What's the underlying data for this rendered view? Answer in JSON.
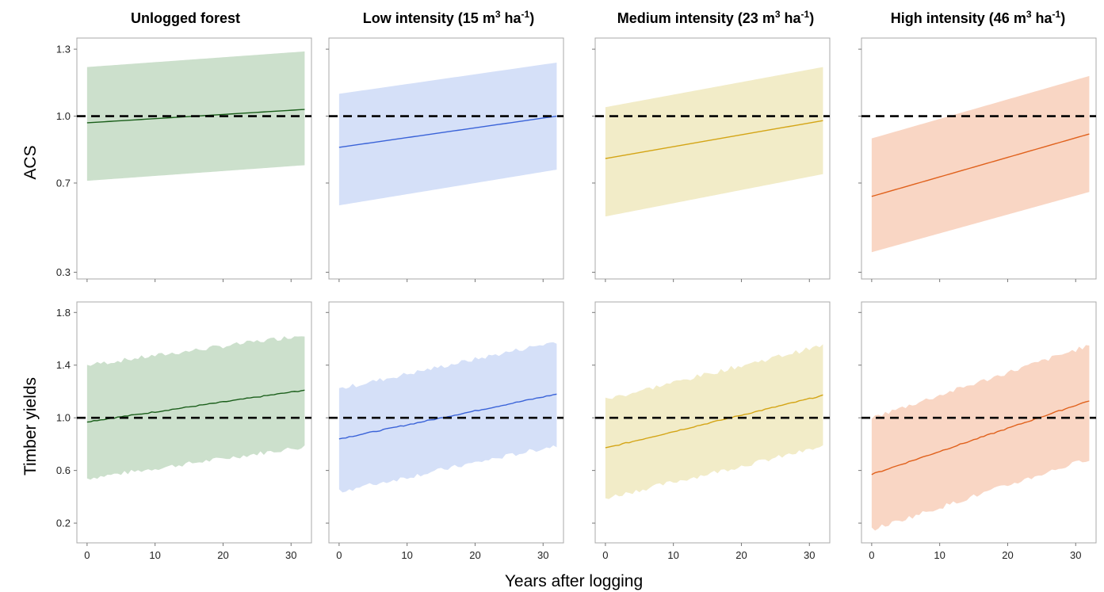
{
  "figure": {
    "x_axis_label": "Years after logging",
    "rows": [
      {
        "label": "ACS",
        "yticks": [
          0.3,
          0.7,
          1.0,
          1.3
        ]
      },
      {
        "label": "Timber yields",
        "yticks": [
          0.2,
          0.6,
          1.0,
          1.4,
          1.8
        ]
      }
    ],
    "columns": [
      {
        "title_main": "Unlogged forest",
        "title_sup1": "",
        "title_mid": "",
        "title_sup2": "",
        "title_end": ""
      },
      {
        "title_main": "Low intensity (15 m",
        "title_sup1": "3",
        "title_mid": " ha",
        "title_sup2": "-1",
        "title_end": ")"
      },
      {
        "title_main": "Medium intensity (23 m",
        "title_sup1": "3",
        "title_mid": " ha",
        "title_sup2": "-1",
        "title_end": ")"
      },
      {
        "title_main": "High intensity (46 m",
        "title_sup1": "3",
        "title_mid": " ha",
        "title_sup2": "-1",
        "title_end": ")"
      }
    ],
    "xticks": [
      0,
      10,
      20,
      30
    ]
  },
  "colors": {
    "unlogged": {
      "band": "#cce0cc",
      "line": "#1a5e1a"
    },
    "low": {
      "band": "#d5e0f8",
      "line": "#3a63d8"
    },
    "medium": {
      "band": "#f2ecc8",
      "line": "#d4a516"
    },
    "high": {
      "band": "#f9d6c4",
      "line": "#e0611c"
    },
    "reference_line": "#000000"
  },
  "chart_data": [
    {
      "type": "area",
      "row": "ACS",
      "panel": "Unlogged forest",
      "x": [
        0,
        32
      ],
      "mean": [
        0.97,
        1.03
      ],
      "lower": [
        0.71,
        0.78
      ],
      "upper": [
        1.22,
        1.29
      ],
      "reference": 1.0,
      "xlim": [
        -1.5,
        33
      ],
      "ylim": [
        0.27,
        1.35
      ]
    },
    {
      "type": "area",
      "row": "ACS",
      "panel": "Low intensity (15 m3 ha-1)",
      "x": [
        0,
        32
      ],
      "mean": [
        0.86,
        1.0
      ],
      "lower": [
        0.6,
        0.76
      ],
      "upper": [
        1.1,
        1.24
      ],
      "reference": 1.0,
      "xlim": [
        -1.5,
        33
      ],
      "ylim": [
        0.27,
        1.35
      ]
    },
    {
      "type": "area",
      "row": "ACS",
      "panel": "Medium intensity (23 m3 ha-1)",
      "x": [
        0,
        32
      ],
      "mean": [
        0.81,
        0.98
      ],
      "lower": [
        0.55,
        0.74
      ],
      "upper": [
        1.04,
        1.22
      ],
      "reference": 1.0,
      "xlim": [
        -1.5,
        33
      ],
      "ylim": [
        0.27,
        1.35
      ]
    },
    {
      "type": "area",
      "row": "ACS",
      "panel": "High intensity (46 m3 ha-1)",
      "x": [
        0,
        32
      ],
      "mean": [
        0.64,
        0.92
      ],
      "lower": [
        0.39,
        0.66
      ],
      "upper": [
        0.9,
        1.18
      ],
      "reference": 1.0,
      "xlim": [
        -1.5,
        33
      ],
      "ylim": [
        0.27,
        1.35
      ]
    },
    {
      "type": "area",
      "row": "Timber yields",
      "panel": "Unlogged forest",
      "x": [
        0,
        32
      ],
      "mean": [
        0.97,
        1.21
      ],
      "lower": [
        0.54,
        0.78
      ],
      "upper": [
        1.4,
        1.63
      ],
      "reference": 1.0,
      "xlim": [
        -1.5,
        33
      ],
      "ylim": [
        0.05,
        1.88
      ]
    },
    {
      "type": "area",
      "row": "Timber yields",
      "panel": "Low intensity (15 m3 ha-1)",
      "x": [
        0,
        32
      ],
      "mean": [
        0.84,
        1.18
      ],
      "lower": [
        0.44,
        0.79
      ],
      "upper": [
        1.22,
        1.58
      ],
      "reference": 1.0,
      "xlim": [
        -1.5,
        33
      ],
      "ylim": [
        0.05,
        1.88
      ]
    },
    {
      "type": "area",
      "row": "Timber yields",
      "panel": "Medium intensity (23 m3 ha-1)",
      "x": [
        0,
        32
      ],
      "mean": [
        0.77,
        1.17
      ],
      "lower": [
        0.39,
        0.78
      ],
      "upper": [
        1.14,
        1.55
      ],
      "reference": 1.0,
      "xlim": [
        -1.5,
        33
      ],
      "ylim": [
        0.05,
        1.88
      ]
    },
    {
      "type": "area",
      "row": "Timber yields",
      "panel": "High intensity (46 m3 ha-1)",
      "x": [
        0,
        32
      ],
      "mean": [
        0.57,
        1.13
      ],
      "lower": [
        0.15,
        0.69
      ],
      "upper": [
        1.0,
        1.55
      ],
      "reference": 1.0,
      "xlim": [
        -1.5,
        33
      ],
      "ylim": [
        0.05,
        1.88
      ]
    }
  ]
}
